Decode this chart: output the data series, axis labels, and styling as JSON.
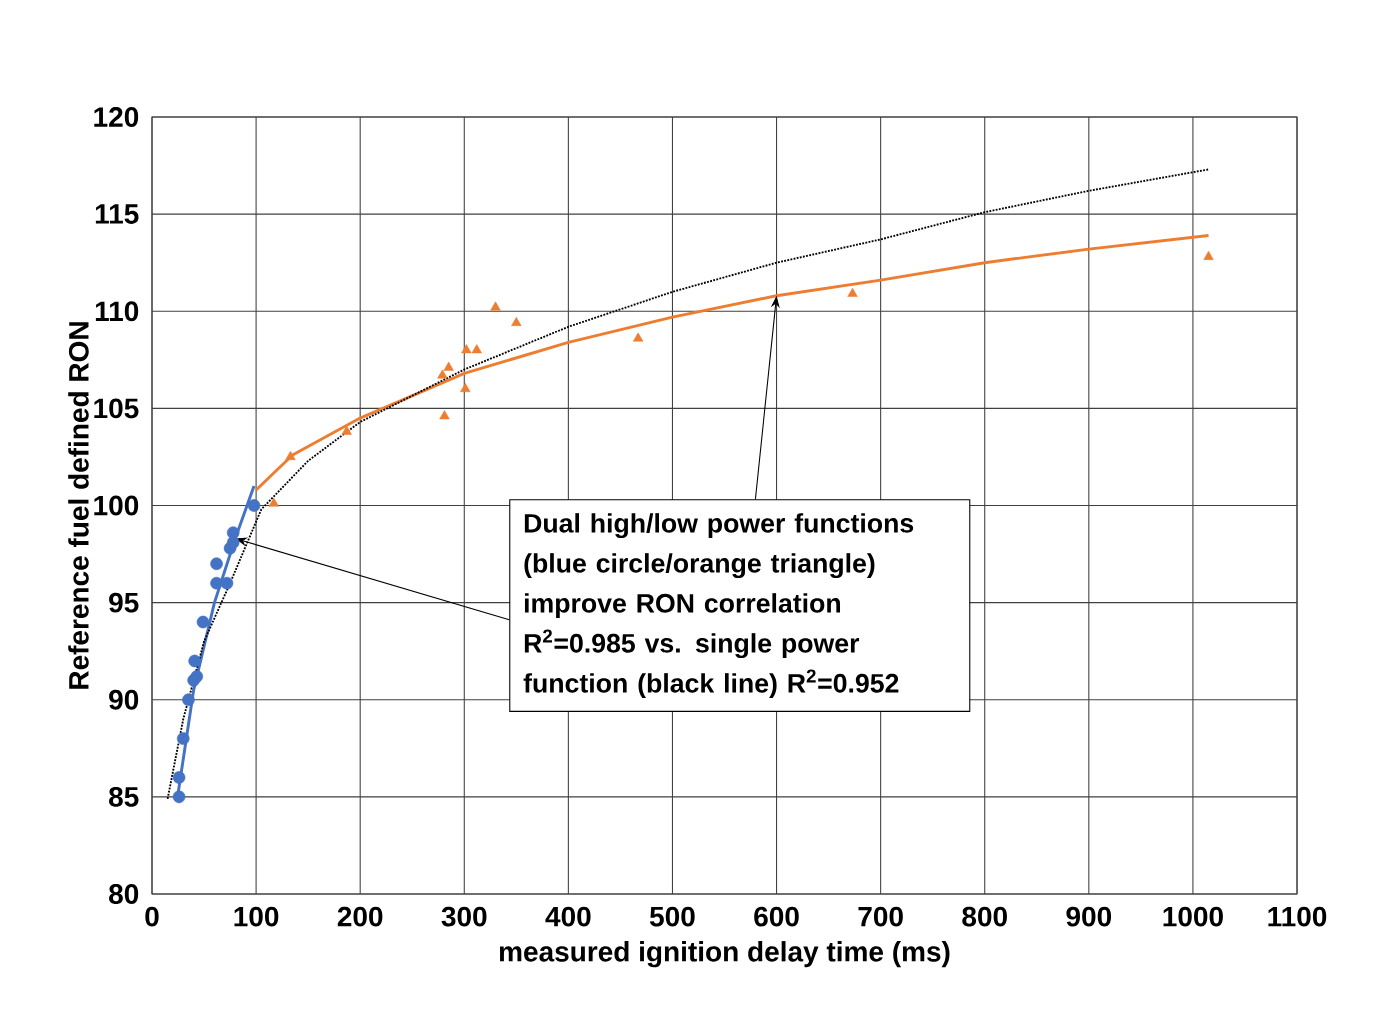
{
  "chart_data": {
    "type": "scatter",
    "xlabel": "measured ignition delay time (ms)",
    "ylabel": "Reference fuel defined RON",
    "xlim": [
      0,
      1100
    ],
    "xticks": [
      0,
      100,
      200,
      300,
      400,
      500,
      600,
      700,
      800,
      900,
      1000,
      1100
    ],
    "ylim": [
      80,
      120
    ],
    "yticks": [
      80,
      85,
      90,
      95,
      100,
      105,
      110,
      115,
      120
    ],
    "grid": true,
    "series": [
      {
        "type": "scatter",
        "marker": "circle",
        "color": "#4472c4",
        "x": [
          26,
          26,
          30,
          35,
          40,
          41,
          43,
          49,
          62,
          72,
          62,
          75,
          78,
          78,
          98
        ],
        "values": [
          85,
          86,
          88,
          90,
          91,
          92,
          91.2,
          94,
          96,
          96,
          97,
          97.8,
          98.1,
          98.6,
          100
        ]
      },
      {
        "type": "scatter",
        "marker": "triangle",
        "color": "#ed7d31",
        "x": [
          117,
          133,
          187,
          281,
          279,
          285,
          301,
          302,
          312,
          330,
          350,
          467,
          673,
          1015
        ],
        "values": [
          100.1,
          102.5,
          103.8,
          104.6,
          106.7,
          107.1,
          106,
          108,
          108,
          110.2,
          109.4,
          108.6,
          110.9,
          112.8
        ]
      },
      {
        "type": "line",
        "line_style": "solid",
        "color": "#4472c4",
        "x": [
          24,
          40,
          60,
          80,
          98
        ],
        "values": [
          84.8,
          90.5,
          95,
          98.3,
          101
        ]
      },
      {
        "type": "line",
        "line_style": "solid",
        "color": "#ed7d31",
        "x": [
          100,
          135,
          200,
          300,
          400,
          500,
          600,
          700,
          800,
          900,
          1015
        ],
        "values": [
          100.8,
          102.6,
          104.5,
          106.8,
          108.4,
          109.7,
          110.8,
          111.6,
          112.5,
          113.2,
          113.9
        ]
      },
      {
        "type": "line",
        "line_style": "dotted",
        "color": "#000000",
        "x": [
          15,
          30,
          50,
          75,
          105,
          150,
          200,
          300,
          400,
          500,
          600,
          700,
          800,
          900,
          1015
        ],
        "values": [
          84.9,
          89,
          93,
          96,
          99.8,
          102.3,
          104.3,
          107,
          109.2,
          111,
          112.5,
          113.7,
          115.1,
          116.2,
          117.3
        ]
      }
    ],
    "annotations": [
      "Dual high/low power functions (blue circle/orange triangle) improve RON correlation R$^{2}$=0.985 vs. single power function (black line) R$^{2}$=0.952"
    ]
  }
}
